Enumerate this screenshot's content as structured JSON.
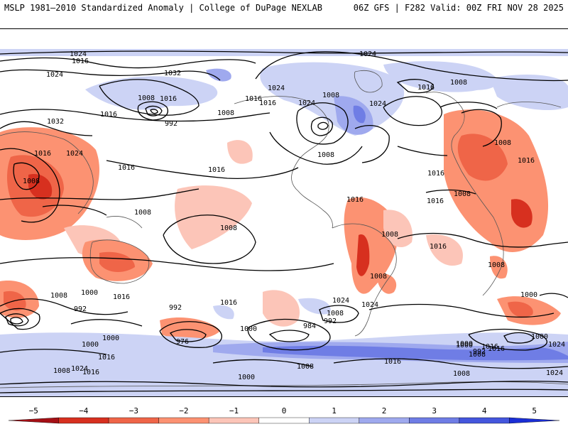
{
  "header": {
    "left_title": "MSLP 1981–2010 Standardized Anomaly | College of DuPage NEXLAB",
    "right_title": "06Z GFS | F282 Valid: 00Z FRI NOV 28 2025"
  },
  "colors": {
    "neg5": "#a50f15",
    "neg4": "#d7301f",
    "neg3": "#ef6548",
    "neg2": "#fc9272",
    "neg1": "#fcc5b8",
    "pos1": "#ccd3f5",
    "pos2": "#9fa9ee",
    "pos3": "#6f7de5",
    "pos4": "#4456dd",
    "pos5": "#1a2ed6",
    "contour": "#000000",
    "land": "#555555"
  },
  "colorbar": {
    "ticks": [
      "−5",
      "−4",
      "−3",
      "−2",
      "−1",
      "0",
      "1",
      "2",
      "3",
      "4",
      "5"
    ],
    "min": -5.5,
    "max": 5.5
  },
  "isobar_labels": [
    "1024",
    "1016",
    "1024",
    "1032",
    "1024",
    "1008",
    "1016",
    "992",
    "1008",
    "1016",
    "1032",
    "1016",
    "1024",
    "1016",
    "1024",
    "1016",
    "1008",
    "1024",
    "1016",
    "1024",
    "1008",
    "1008",
    "1016",
    "1016",
    "1008",
    "1008",
    "1016",
    "1016",
    "1016",
    "1008",
    "1008",
    "1008",
    "1008",
    "1016",
    "1000",
    "992",
    "1008",
    "1016",
    "992",
    "1000",
    "976",
    "1016",
    "1024",
    "1008",
    "984",
    "992",
    "1000",
    "1000",
    "1016",
    "1016",
    "1024",
    "1008",
    "1000",
    "1000",
    "1008",
    "1000",
    "1008",
    "1008",
    "1016",
    "1000",
    "1024",
    "1016",
    "1024",
    "1016",
    "1024",
    "1016",
    "1008",
    "1008",
    "992",
    "1000"
  ]
}
